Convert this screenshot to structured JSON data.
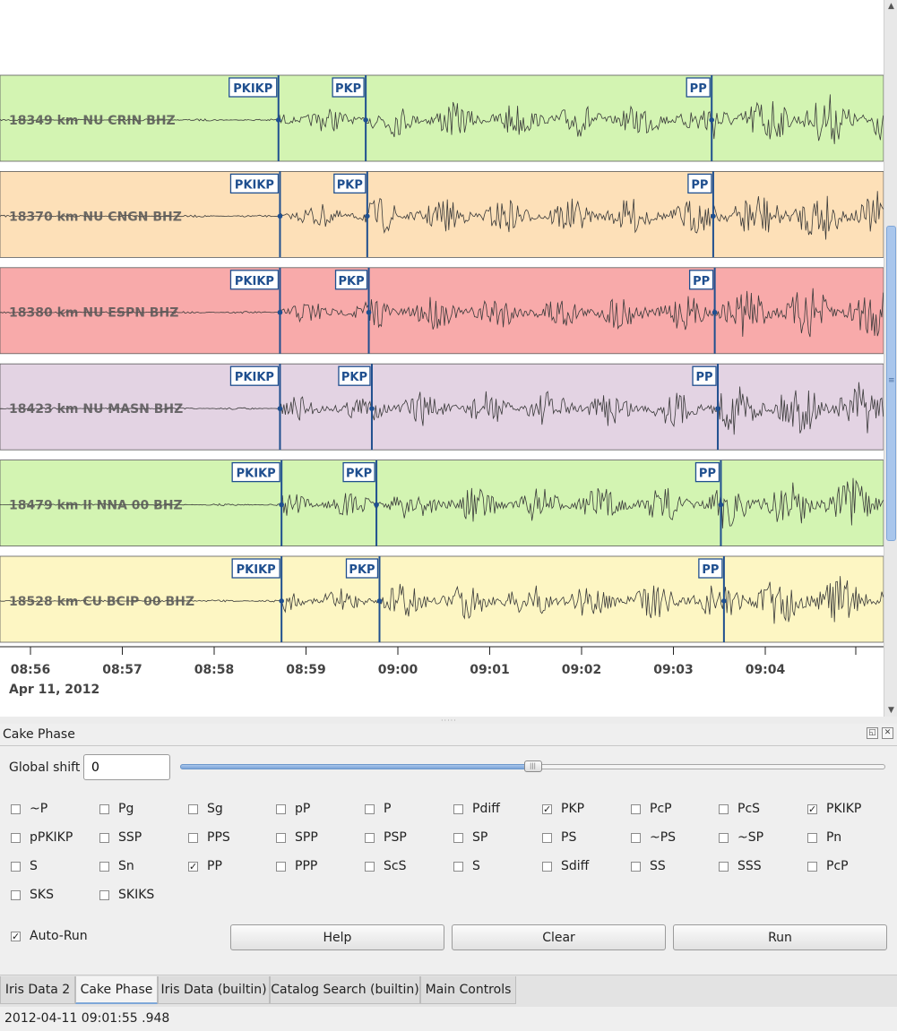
{
  "traces": [
    {
      "label": "18349 km NU CRIN  BHZ",
      "bg": "#d3f4b2",
      "picks": [
        {
          "name": "PKIKP",
          "t": "08:58:42"
        },
        {
          "name": "PKP",
          "t": "08:59:39"
        },
        {
          "name": "PP",
          "t": "09:03:25"
        }
      ]
    },
    {
      "label": "18370 km NU CNGN  BHZ",
      "bg": "#fde0b8",
      "picks": [
        {
          "name": "PKIKP",
          "t": "08:58:43"
        },
        {
          "name": "PKP",
          "t": "08:59:40"
        },
        {
          "name": "PP",
          "t": "09:03:26"
        }
      ]
    },
    {
      "label": "18380 km NU ESPN  BHZ",
      "bg": "#f8aaaa",
      "picks": [
        {
          "name": "PKIKP",
          "t": "08:58:43"
        },
        {
          "name": "PKP",
          "t": "08:59:41"
        },
        {
          "name": "PP",
          "t": "09:03:27"
        }
      ]
    },
    {
      "label": "18423 km NU MASN  BHZ",
      "bg": "#e3d3e3",
      "picks": [
        {
          "name": "PKIKP",
          "t": "08:58:43"
        },
        {
          "name": "PKP",
          "t": "08:59:43"
        },
        {
          "name": "PP",
          "t": "09:03:29"
        }
      ]
    },
    {
      "label": "18479 km II NNA 00 BHZ",
      "bg": "#d3f4b2",
      "picks": [
        {
          "name": "PKIKP",
          "t": "08:58:44"
        },
        {
          "name": "PKP",
          "t": "08:59:46"
        },
        {
          "name": "PP",
          "t": "09:03:31"
        }
      ]
    },
    {
      "label": "18528 km CU BCIP 00 BHZ",
      "bg": "#fdf6c3",
      "picks": [
        {
          "name": "PKIKP",
          "t": "08:58:44"
        },
        {
          "name": "PKP",
          "t": "08:59:48"
        },
        {
          "name": "PP",
          "t": "09:03:33"
        }
      ]
    }
  ],
  "time_axis": {
    "ticks": [
      "08:56",
      "08:57",
      "08:58",
      "08:59",
      "09:00",
      "09:01",
      "09:02",
      "09:03",
      "09:04"
    ],
    "date": "Apr 11, 2012"
  },
  "colors": {
    "pick": "#1f4f8f",
    "waveform": "#3a3a3a",
    "accent": "#7ea7d8"
  },
  "panel": {
    "title": "Cake Phase",
    "global_shift_label": "Global shift",
    "global_shift_value": "0",
    "slider_value": 0.5,
    "phases": [
      {
        "label": "~P",
        "checked": false
      },
      {
        "label": "Pg",
        "checked": false
      },
      {
        "label": "Sg",
        "checked": false
      },
      {
        "label": "pP",
        "checked": false
      },
      {
        "label": "P",
        "checked": false
      },
      {
        "label": "Pdiff",
        "checked": false
      },
      {
        "label": "PKP",
        "checked": true
      },
      {
        "label": "PcP",
        "checked": false
      },
      {
        "label": "PcS",
        "checked": false
      },
      {
        "label": "PKIKP",
        "checked": true
      },
      {
        "label": "pPKIKP",
        "checked": false
      },
      {
        "label": "SSP",
        "checked": false
      },
      {
        "label": "PPS",
        "checked": false
      },
      {
        "label": "SPP",
        "checked": false
      },
      {
        "label": "PSP",
        "checked": false
      },
      {
        "label": "SP",
        "checked": false
      },
      {
        "label": "PS",
        "checked": false
      },
      {
        "label": "~PS",
        "checked": false
      },
      {
        "label": "~SP",
        "checked": false
      },
      {
        "label": "Pn",
        "checked": false
      },
      {
        "label": "S",
        "checked": false
      },
      {
        "label": "Sn",
        "checked": false
      },
      {
        "label": "PP",
        "checked": true
      },
      {
        "label": "PPP",
        "checked": false
      },
      {
        "label": "ScS",
        "checked": false
      },
      {
        "label": "S",
        "checked": false
      },
      {
        "label": "Sdiff",
        "checked": false
      },
      {
        "label": "SS",
        "checked": false
      },
      {
        "label": "SSS",
        "checked": false
      },
      {
        "label": "PcP",
        "checked": false
      },
      {
        "label": "SKS",
        "checked": false
      },
      {
        "label": "SKIKS",
        "checked": false
      }
    ],
    "auto_run_label": "Auto-Run",
    "auto_run_checked": true,
    "help_label": "Help",
    "clear_label": "Clear",
    "run_label": "Run"
  },
  "tabs": [
    {
      "label": "Iris Data 2",
      "active": false
    },
    {
      "label": "Cake Phase",
      "active": true
    },
    {
      "label": "Iris Data (builtin)",
      "active": false
    },
    {
      "label": "Catalog Search (builtin)",
      "active": false
    },
    {
      "label": "Main Controls",
      "active": false
    }
  ],
  "status": "2012-04-11 09:01:55 .948"
}
